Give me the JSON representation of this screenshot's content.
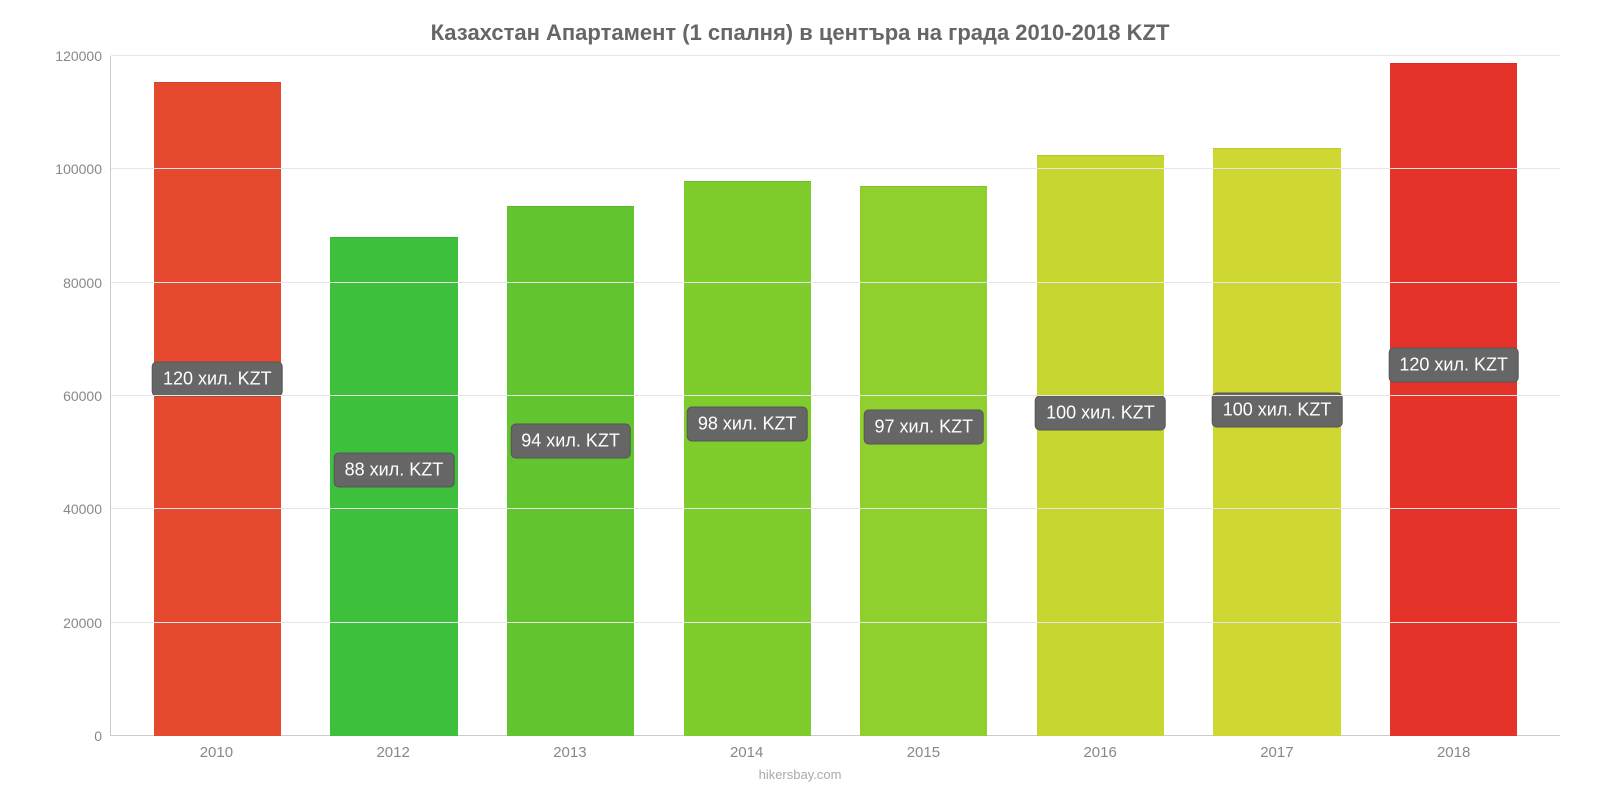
{
  "chart": {
    "type": "bar",
    "title": "Казахстан Апартамент (1 спалня) в центъра на града 2010-2018 KZT",
    "title_color": "#666666",
    "title_fontsize": 22,
    "background_color": "#ffffff",
    "grid_color": "#e6e6e6",
    "axis_color": "#cccccc",
    "tick_label_color": "#888888",
    "tick_fontsize": 14,
    "footer": "hikersbay.com",
    "footer_color": "#aaaaaa",
    "ylim": [
      0,
      120000
    ],
    "ytick_step": 20000,
    "yticks": [
      0,
      20000,
      40000,
      60000,
      80000,
      100000,
      120000
    ],
    "bar_width_pct": 72,
    "bar_label_fontsize": 18,
    "bar_label_bg": "#666666",
    "bar_label_color": "#ffffff",
    "categories": [
      "2010",
      "2012",
      "2013",
      "2014",
      "2015",
      "2016",
      "2017",
      "2018"
    ],
    "values": [
      115500,
      88000,
      93500,
      98000,
      97000,
      102500,
      103800,
      118800
    ],
    "value_labels": [
      "120 хил. KZT",
      "88 хил. KZT",
      "94 хил. KZT",
      "98 хил. KZT",
      "97 хил. KZT",
      "100 хил. KZT",
      "100 хил. KZT",
      "120 хил. KZT"
    ],
    "label_y_positions": [
      63000,
      47000,
      52000,
      55000,
      54500,
      57000,
      57500,
      65500
    ],
    "bar_colors": [
      "#e64a2e",
      "#3dc13d",
      "#62c42e",
      "#7fcd2d",
      "#8fd02e",
      "#c7d631",
      "#cfd732",
      "#e6332a"
    ]
  }
}
